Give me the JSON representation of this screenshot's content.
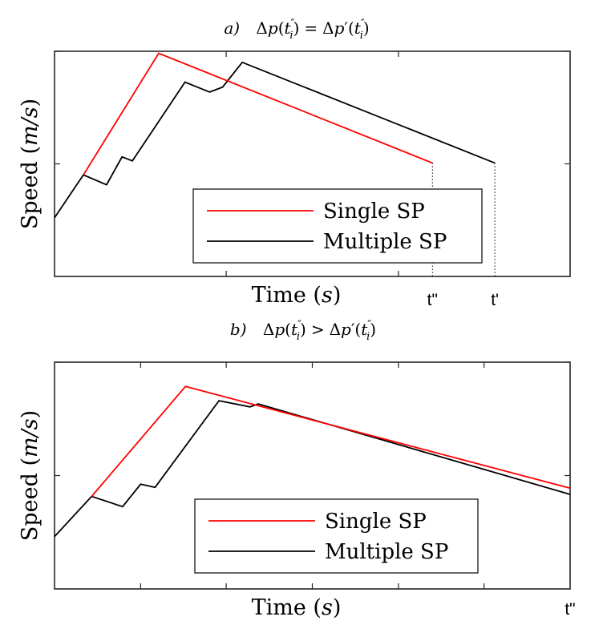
{
  "chart_data": [
    {
      "type": "line",
      "panel_label": "a)",
      "title_parts": {
        "delta": "Δ",
        "p": "p",
        "open": "(",
        "t": "t",
        "sub": "i",
        "sup": "″",
        "close": ")",
        "eq": "=",
        "prime": "′"
      },
      "relation": "=",
      "xlabel": {
        "main": "Time",
        "unit": "s"
      },
      "ylabel": {
        "main": "Speed",
        "unit": "m/s"
      },
      "xlim": [
        0,
        100
      ],
      "ylim": [
        0,
        100
      ],
      "xticks": [
        33.3,
        66.7
      ],
      "yticks": [
        50,
        100
      ],
      "legend": {
        "position": "bottom-right",
        "entries": [
          "Single SP",
          "Multiple SP"
        ]
      },
      "end_labels": [
        "t\"",
        "t'"
      ],
      "end_x": [
        73.3,
        85.4
      ],
      "series": [
        {
          "name": "Single SP",
          "color": "#ff0000",
          "x": [
            5.6,
            20.2,
            73.3
          ],
          "y": [
            45.1,
            99.1,
            50.4
          ]
        },
        {
          "name": "Multiple SP",
          "color": "#000000",
          "x": [
            0,
            5.6,
            10.1,
            13.1,
            15.1,
            25.3,
            30.1,
            32.6,
            36.4,
            85.4
          ],
          "y": [
            26.1,
            45.1,
            40.7,
            53.1,
            51.3,
            86.3,
            81.9,
            84.1,
            95.1,
            50.4
          ]
        }
      ]
    },
    {
      "type": "line",
      "panel_label": "b)",
      "relation": ">",
      "xlabel": {
        "main": "Time",
        "unit": "s"
      },
      "ylabel": {
        "main": "Speed",
        "unit": "m/s"
      },
      "xlim": [
        0,
        100
      ],
      "ylim": [
        0,
        100
      ],
      "xticks": [
        16.7,
        33.3,
        50,
        66.7,
        83.3
      ],
      "yticks": [
        50,
        100
      ],
      "legend": {
        "position": "bottom-right",
        "entries": [
          "Single SP",
          "Multiple SP"
        ]
      },
      "end_labels": [
        "t\""
      ],
      "end_x": [
        100
      ],
      "series": [
        {
          "name": "Single SP",
          "color": "#ff0000",
          "x": [
            7.2,
            25.4,
            100
          ],
          "y": [
            40.8,
            89.3,
            44.4
          ]
        },
        {
          "name": "Multiple SP",
          "color": "#000000",
          "x": [
            0,
            7.2,
            13.2,
            16.7,
            19.5,
            31.9,
            37.9,
            39.5,
            100
          ],
          "y": [
            23.1,
            40.8,
            36.3,
            46.2,
            44.8,
            83.0,
            80.3,
            81.6,
            41.7
          ]
        }
      ]
    }
  ]
}
